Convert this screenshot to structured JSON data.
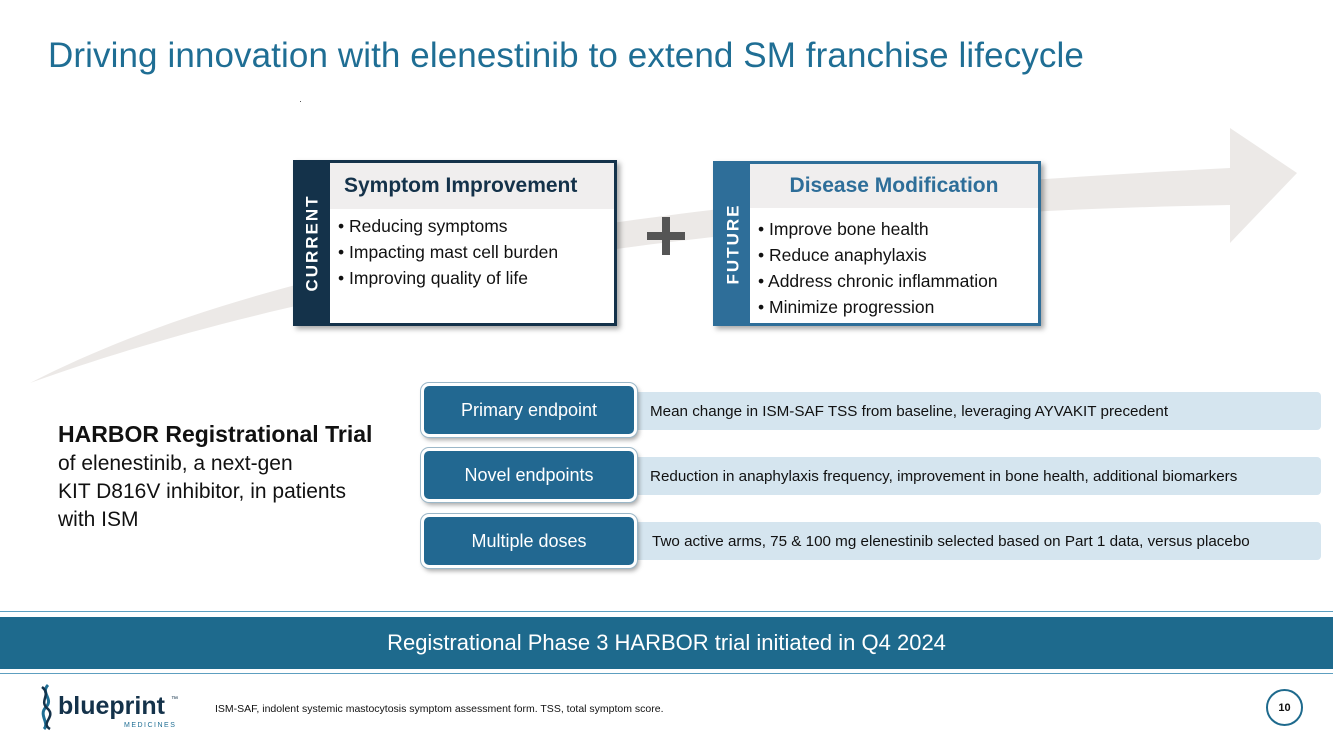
{
  "title": "Driving innovation with elenestinib to extend SM franchise lifecycle",
  "current": {
    "side_label": "CURRENT",
    "heading": "Symptom Improvement",
    "bullets": [
      "Reducing symptoms",
      "Impacting mast cell burden",
      "Improving quality of life"
    ]
  },
  "future": {
    "side_label": "FUTURE",
    "heading": "Disease Modification",
    "bullets": [
      "Improve bone health",
      "Reduce anaphylaxis",
      "Address chronic inflammation",
      "Minimize progression"
    ]
  },
  "harbor": {
    "heading": "HARBOR Registrational Trial",
    "lines": [
      "of elenestinib, a next-gen",
      "KIT D816V inhibitor, in patients",
      "with ISM"
    ]
  },
  "endpoints": [
    {
      "label": "Primary endpoint",
      "text": "Mean change in ISM-SAF TSS from baseline, leveraging AYVAKIT precedent"
    },
    {
      "label": "Novel endpoints",
      "text": "Reduction in anaphylaxis frequency, improvement in bone health, additional biomarkers"
    },
    {
      "label": "Multiple doses",
      "text": "Two active arms, 75 & 100 mg elenestinib selected based on Part 1 data, versus placebo"
    }
  ],
  "banner": "Registrational Phase 3 HARBOR trial initiated in Q4 2024",
  "footer": {
    "logo_text": "blueprint",
    "logo_sub": "MEDICINES",
    "logo_tm": "™",
    "footnote": "ISM-SAF, indolent systemic mastocytosis symptom assessment form. TSS, total symptom score.",
    "page_number": "10"
  },
  "colors": {
    "title": "#1f6e94",
    "current": "#14324a",
    "future": "#2e6e99",
    "banner": "#1e6a8d",
    "endpoint_button": "#226891",
    "endpoint_bar": "#d5e5ef",
    "arrow": "#ece9e7"
  }
}
